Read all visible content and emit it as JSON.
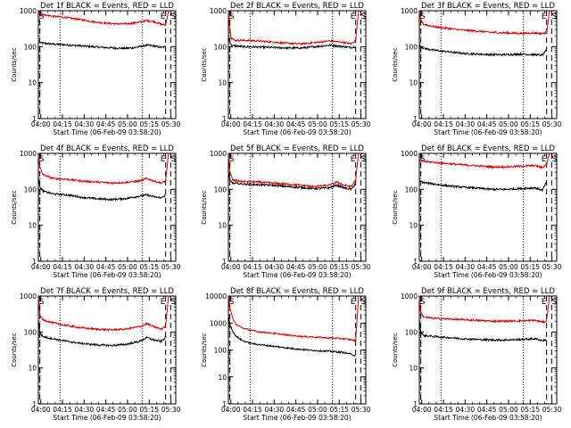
{
  "colors": {
    "events": "#000000",
    "lld": "#dd0000",
    "axis": "#000000"
  },
  "shared": {
    "ylabel": "Counts/sec",
    "xlabel": "Start Time (06-Feb-09 03:58:20)",
    "x_ticks": [
      "04:00",
      "04:15",
      "04:30",
      "04:45",
      "05:00",
      "05:15",
      "05:30"
    ],
    "y_ticks": [
      "1",
      "10",
      "100",
      "1000"
    ],
    "y_ticks_big": [
      "1",
      "10",
      "100",
      "1000",
      "10000"
    ],
    "marker_E": "E",
    "marker_S": "S"
  },
  "chart_data": [
    {
      "type": "line",
      "title": "Det 1f BLACK = Events, RED = LLD",
      "yscale": "log",
      "ylim": [
        1,
        1000
      ],
      "xlim_min": [
        0,
        95
      ],
      "dashed_lines_min": [
        1,
        88,
        91.5
      ],
      "dotted_lines_min": [
        15,
        72
      ],
      "series": [
        {
          "name": "Events",
          "x": [
            0,
            1,
            3,
            10,
            20,
            30,
            40,
            50,
            55,
            60,
            65,
            70,
            75,
            80,
            85,
            88
          ],
          "y": [
            130,
            130,
            125,
            118,
            112,
            105,
            98,
            93,
            90,
            90,
            92,
            100,
            110,
            105,
            95,
            100
          ]
        },
        {
          "name": "LLD",
          "x": [
            0,
            1,
            3,
            10,
            20,
            30,
            40,
            50,
            55,
            60,
            65,
            70,
            75,
            80,
            85,
            88,
            90
          ],
          "y": [
            950,
            850,
            780,
            700,
            640,
            560,
            480,
            440,
            430,
            430,
            450,
            480,
            530,
            500,
            420,
            400,
            1000
          ]
        }
      ]
    },
    {
      "type": "line",
      "title": "Det 2f BLACK = Events, RED = LLD",
      "yscale": "log",
      "ylim": [
        1,
        1000
      ],
      "xlim_min": [
        0,
        95
      ],
      "dashed_lines_min": [
        1,
        88,
        91.5
      ],
      "dotted_lines_min": [
        15,
        72
      ],
      "series": [
        {
          "name": "Events",
          "x": [
            0,
            1,
            2,
            5,
            10,
            20,
            30,
            40,
            50,
            55,
            60,
            70,
            80,
            85,
            88
          ],
          "y": [
            180,
            130,
            110,
            105,
            100,
            98,
            95,
            92,
            92,
            95,
            100,
            110,
            100,
            95,
            100
          ]
        },
        {
          "name": "LLD",
          "x": [
            0,
            1,
            2,
            5,
            10,
            20,
            30,
            40,
            50,
            55,
            60,
            70,
            80,
            85,
            88,
            90
          ],
          "y": [
            900,
            300,
            170,
            150,
            150,
            145,
            135,
            125,
            120,
            125,
            130,
            145,
            130,
            120,
            150,
            1000
          ]
        }
      ]
    },
    {
      "type": "line",
      "title": "Det 3f BLACK = Events, RED = LLD",
      "yscale": "log",
      "ylim": [
        1,
        1000
      ],
      "xlim_min": [
        0,
        95
      ],
      "dashed_lines_min": [
        1,
        88,
        91.5
      ],
      "dotted_lines_min": [
        15,
        72
      ],
      "series": [
        {
          "name": "Events",
          "x": [
            0,
            1,
            3,
            10,
            20,
            30,
            40,
            50,
            60,
            70,
            80,
            85,
            88
          ],
          "y": [
            120,
            100,
            90,
            80,
            72,
            65,
            62,
            60,
            60,
            62,
            60,
            58,
            80
          ]
        },
        {
          "name": "LLD",
          "x": [
            0,
            1,
            3,
            10,
            20,
            30,
            40,
            50,
            60,
            70,
            80,
            85,
            88,
            90
          ],
          "y": [
            900,
            550,
            420,
            360,
            320,
            290,
            270,
            250,
            240,
            235,
            240,
            230,
            250,
            1000
          ]
        }
      ]
    },
    {
      "type": "line",
      "title": "Det 4f BLACK = Events, RED = LLD",
      "yscale": "log",
      "ylim": [
        1,
        1000
      ],
      "xlim_min": [
        0,
        95
      ],
      "dashed_lines_min": [
        1,
        88,
        91.5
      ],
      "dotted_lines_min": [
        15,
        72
      ],
      "series": [
        {
          "name": "Events",
          "x": [
            0,
            1,
            3,
            10,
            20,
            30,
            40,
            50,
            60,
            70,
            75,
            80,
            85,
            88
          ],
          "y": [
            200,
            120,
            90,
            75,
            70,
            60,
            55,
            52,
            55,
            65,
            70,
            62,
            58,
            70
          ]
        },
        {
          "name": "LLD",
          "x": [
            0,
            1,
            3,
            10,
            20,
            30,
            40,
            50,
            60,
            70,
            75,
            80,
            85,
            88,
            90
          ],
          "y": [
            900,
            420,
            260,
            200,
            190,
            170,
            160,
            150,
            155,
            170,
            200,
            170,
            150,
            170,
            1000
          ]
        }
      ]
    },
    {
      "type": "line",
      "title": "Det 5f BLACK = Events, RED = LLD",
      "yscale": "log",
      "ylim": [
        1,
        1000
      ],
      "xlim_min": [
        0,
        95
      ],
      "dashed_lines_min": [
        1,
        88,
        91.5
      ],
      "dotted_lines_min": [
        15,
        72
      ],
      "series": [
        {
          "name": "Events",
          "x": [
            0,
            1,
            3,
            10,
            20,
            30,
            40,
            50,
            60,
            70,
            75,
            80,
            85,
            88
          ],
          "y": [
            300,
            180,
            150,
            140,
            135,
            130,
            120,
            112,
            105,
            110,
            130,
            110,
            100,
            150
          ]
        },
        {
          "name": "LLD",
          "x": [
            0,
            1,
            3,
            10,
            20,
            30,
            40,
            50,
            60,
            70,
            75,
            80,
            85,
            88,
            90
          ],
          "y": [
            900,
            300,
            180,
            165,
            160,
            150,
            140,
            130,
            120,
            130,
            160,
            130,
            120,
            180,
            1000
          ]
        }
      ]
    },
    {
      "type": "line",
      "title": "Det 6f BLACK = Events, RED = LLD",
      "yscale": "log",
      "ylim": [
        1,
        1000
      ],
      "xlim_min": [
        0,
        95
      ],
      "dashed_lines_min": [
        1,
        88,
        91.5
      ],
      "dotted_lines_min": [
        15,
        72
      ],
      "series": [
        {
          "name": "Events",
          "x": [
            0,
            1,
            3,
            10,
            20,
            30,
            40,
            50,
            60,
            70,
            80,
            85,
            88
          ],
          "y": [
            170,
            165,
            155,
            140,
            125,
            115,
            108,
            100,
            100,
            105,
            110,
            95,
            160
          ]
        },
        {
          "name": "LLD",
          "x": [
            0,
            1,
            3,
            10,
            20,
            30,
            40,
            50,
            60,
            70,
            80,
            85,
            88,
            90
          ],
          "y": [
            650,
            620,
            600,
            560,
            520,
            480,
            450,
            420,
            420,
            440,
            460,
            400,
            500,
            1000
          ]
        }
      ]
    },
    {
      "type": "line",
      "title": "Det 7f BLACK = Events, RED = LLD",
      "yscale": "log",
      "ylim": [
        1,
        1000
      ],
      "xlim_min": [
        0,
        95
      ],
      "dashed_lines_min": [
        1,
        88,
        91.5
      ],
      "dotted_lines_min": [
        15,
        72
      ],
      "series": [
        {
          "name": "Events",
          "x": [
            0,
            1,
            3,
            10,
            20,
            30,
            40,
            50,
            60,
            70,
            75,
            80,
            85,
            88
          ],
          "y": [
            200,
            100,
            75,
            65,
            55,
            48,
            44,
            42,
            45,
            55,
            70,
            60,
            55,
            70
          ]
        },
        {
          "name": "LLD",
          "x": [
            0,
            1,
            3,
            10,
            20,
            30,
            40,
            50,
            60,
            70,
            75,
            80,
            85,
            88,
            90
          ],
          "y": [
            900,
            300,
            220,
            180,
            150,
            130,
            120,
            115,
            120,
            140,
            170,
            140,
            120,
            150,
            1000
          ]
        }
      ]
    },
    {
      "type": "line",
      "title": "Det 8f BLACK = Events, RED = LLD",
      "yscale": "log",
      "ylim": [
        1,
        10000
      ],
      "xlim_min": [
        0,
        95
      ],
      "dashed_lines_min": [
        1,
        88,
        91.5
      ],
      "dotted_lines_min": [
        15,
        72
      ],
      "series": [
        {
          "name": "Events",
          "x": [
            0,
            1,
            3,
            5,
            10,
            15,
            20,
            30,
            40,
            50,
            60,
            70,
            80,
            85,
            88
          ],
          "y": [
            2000,
            900,
            500,
            330,
            220,
            180,
            160,
            140,
            120,
            105,
            95,
            90,
            80,
            70,
            60
          ]
        },
        {
          "name": "LLD",
          "x": [
            0,
            1,
            3,
            5,
            10,
            15,
            20,
            30,
            40,
            50,
            60,
            70,
            80,
            85,
            88,
            90
          ],
          "y": [
            9000,
            3500,
            1500,
            900,
            650,
            550,
            480,
            420,
            360,
            320,
            300,
            280,
            260,
            240,
            220,
            10000
          ]
        }
      ]
    },
    {
      "type": "line",
      "title": "Det 9f BLACK = Events, RED = LLD",
      "yscale": "log",
      "ylim": [
        1,
        1000
      ],
      "xlim_min": [
        0,
        95
      ],
      "dashed_lines_min": [
        1,
        88,
        91.5
      ],
      "dotted_lines_min": [
        15,
        72
      ],
      "series": [
        {
          "name": "Events",
          "x": [
            0,
            1,
            3,
            10,
            20,
            30,
            40,
            50,
            60,
            70,
            80,
            85,
            88
          ],
          "y": [
            200,
            100,
            80,
            75,
            70,
            65,
            62,
            60,
            60,
            62,
            65,
            58,
            60
          ]
        },
        {
          "name": "LLD",
          "x": [
            0,
            1,
            3,
            10,
            20,
            30,
            40,
            50,
            60,
            70,
            80,
            85,
            88,
            90
          ],
          "y": [
            900,
            350,
            260,
            240,
            230,
            220,
            210,
            200,
            200,
            205,
            210,
            190,
            200,
            1000
          ]
        }
      ]
    }
  ]
}
